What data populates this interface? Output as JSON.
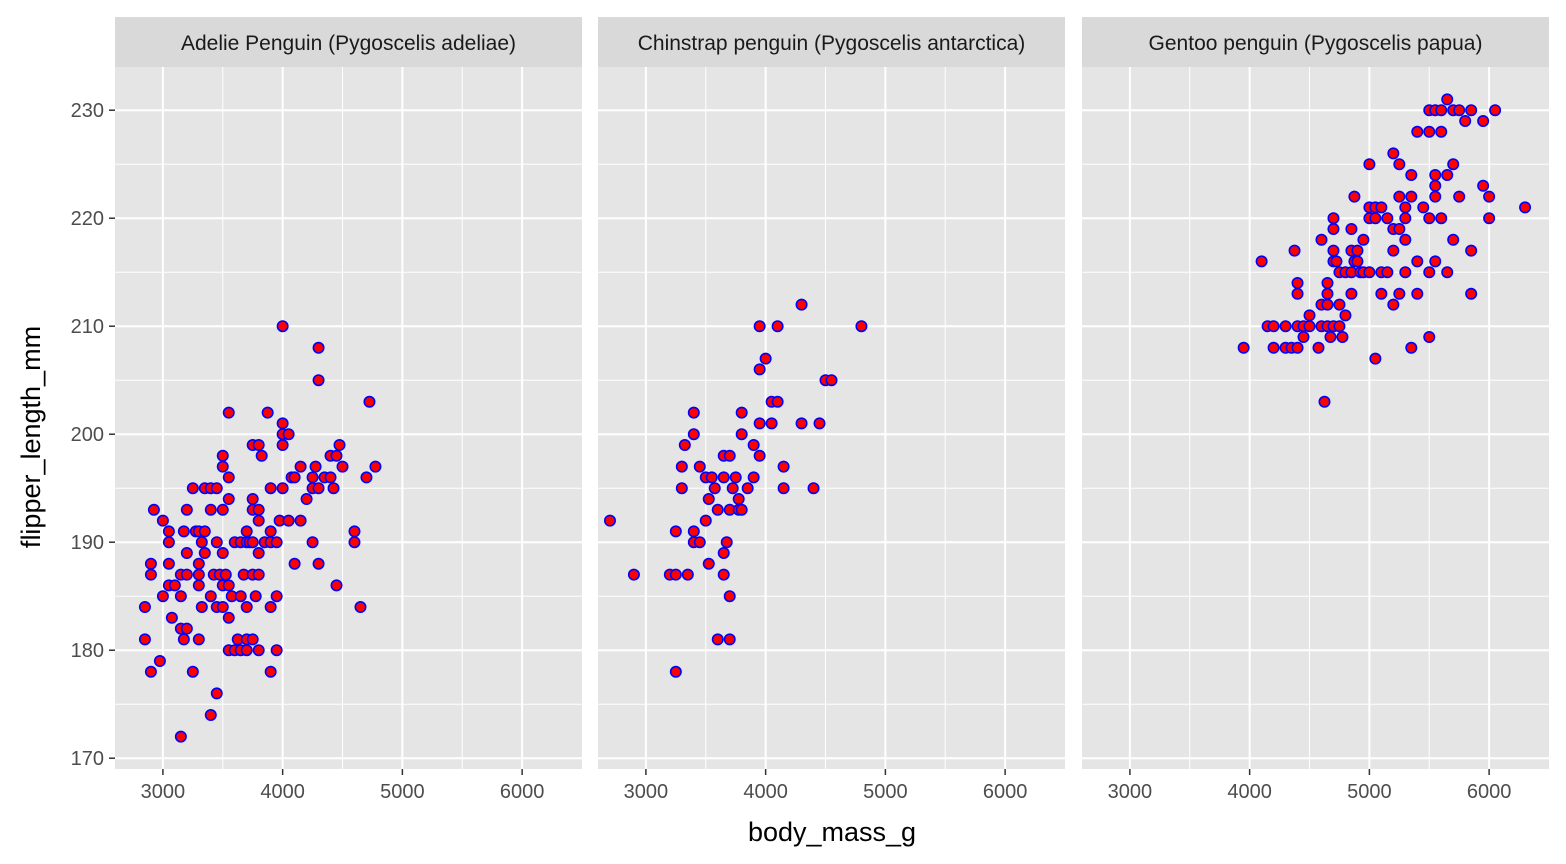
{
  "chart_data": {
    "type": "scatter",
    "xlabel": "body_mass_g",
    "ylabel": "flipper_length_mm",
    "xlim": [
      2600,
      6500
    ],
    "ylim": [
      169,
      234
    ],
    "x_ticks": [
      3000,
      4000,
      5000,
      6000
    ],
    "y_ticks": [
      170,
      180,
      190,
      200,
      210,
      220,
      230
    ],
    "grid": true,
    "point_fill": "#ff0000",
    "point_stroke": "#0000ff",
    "panel_background": "#e5e5e5",
    "strip_background": "#d9d9d9",
    "grid_color": "#ffffff",
    "facets": [
      {
        "label": "Adelie Penguin (Pygoscelis adeliae)",
        "points": [
          [
            2850,
            184
          ],
          [
            2850,
            181
          ],
          [
            2900,
            178
          ],
          [
            2900,
            187
          ],
          [
            2900,
            188
          ],
          [
            2925,
            193
          ],
          [
            2975,
            179
          ],
          [
            3000,
            185
          ],
          [
            3000,
            192
          ],
          [
            3050,
            190
          ],
          [
            3050,
            191
          ],
          [
            3050,
            186
          ],
          [
            3050,
            188
          ],
          [
            3075,
            183
          ],
          [
            3100,
            186
          ],
          [
            3150,
            185
          ],
          [
            3150,
            187
          ],
          [
            3150,
            182
          ],
          [
            3175,
            181
          ],
          [
            3150,
            172
          ],
          [
            3175,
            191
          ],
          [
            3200,
            193
          ],
          [
            3200,
            189
          ],
          [
            3200,
            187
          ],
          [
            3200,
            182
          ],
          [
            3250,
            195
          ],
          [
            3250,
            178
          ],
          [
            3275,
            191
          ],
          [
            3300,
            191
          ],
          [
            3300,
            186
          ],
          [
            3300,
            187
          ],
          [
            3300,
            188
          ],
          [
            3300,
            181
          ],
          [
            3325,
            184
          ],
          [
            3325,
            190
          ],
          [
            3350,
            195
          ],
          [
            3350,
            189
          ],
          [
            3350,
            191
          ],
          [
            3400,
            195
          ],
          [
            3400,
            193
          ],
          [
            3400,
            185
          ],
          [
            3400,
            174
          ],
          [
            3425,
            187
          ],
          [
            3450,
            190
          ],
          [
            3450,
            195
          ],
          [
            3450,
            184
          ],
          [
            3450,
            176
          ],
          [
            3475,
            187
          ],
          [
            3500,
            198
          ],
          [
            3500,
            197
          ],
          [
            3500,
            193
          ],
          [
            3500,
            189
          ],
          [
            3500,
            186
          ],
          [
            3500,
            184
          ],
          [
            3525,
            187
          ],
          [
            3550,
            202
          ],
          [
            3550,
            194
          ],
          [
            3550,
            196
          ],
          [
            3550,
            186
          ],
          [
            3550,
            183
          ],
          [
            3550,
            180
          ],
          [
            3575,
            185
          ],
          [
            3600,
            190
          ],
          [
            3600,
            180
          ],
          [
            3625,
            181
          ],
          [
            3650,
            190
          ],
          [
            3650,
            185
          ],
          [
            3650,
            180
          ],
          [
            3675,
            187
          ],
          [
            3700,
            190
          ],
          [
            3700,
            191
          ],
          [
            3700,
            184
          ],
          [
            3700,
            181
          ],
          [
            3700,
            180
          ],
          [
            3725,
            190
          ],
          [
            3750,
            199
          ],
          [
            3750,
            194
          ],
          [
            3750,
            193
          ],
          [
            3750,
            190
          ],
          [
            3750,
            187
          ],
          [
            3750,
            181
          ],
          [
            3775,
            185
          ],
          [
            3800,
            199
          ],
          [
            3800,
            192
          ],
          [
            3800,
            189
          ],
          [
            3800,
            193
          ],
          [
            3800,
            187
          ],
          [
            3800,
            180
          ],
          [
            3825,
            198
          ],
          [
            3850,
            190
          ],
          [
            3875,
            202
          ],
          [
            3900,
            195
          ],
          [
            3900,
            191
          ],
          [
            3900,
            190
          ],
          [
            3900,
            184
          ],
          [
            3900,
            178
          ],
          [
            3950,
            185
          ],
          [
            3950,
            180
          ],
          [
            3950,
            190
          ],
          [
            3975,
            192
          ],
          [
            4000,
            210
          ],
          [
            4000,
            201
          ],
          [
            4000,
            200
          ],
          [
            4000,
            199
          ],
          [
            4000,
            195
          ],
          [
            4050,
            200
          ],
          [
            4050,
            192
          ],
          [
            4075,
            196
          ],
          [
            4100,
            196
          ],
          [
            4100,
            188
          ],
          [
            4150,
            197
          ],
          [
            4150,
            192
          ],
          [
            4200,
            194
          ],
          [
            4250,
            195
          ],
          [
            4250,
            196
          ],
          [
            4250,
            190
          ],
          [
            4275,
            197
          ],
          [
            4300,
            208
          ],
          [
            4300,
            205
          ],
          [
            4300,
            188
          ],
          [
            4300,
            195
          ],
          [
            4350,
            196
          ],
          [
            4400,
            198
          ],
          [
            4400,
            196
          ],
          [
            4425,
            195
          ],
          [
            4450,
            198
          ],
          [
            4450,
            186
          ],
          [
            4475,
            199
          ],
          [
            4500,
            197
          ],
          [
            4600,
            191
          ],
          [
            4600,
            190
          ],
          [
            4650,
            184
          ],
          [
            4700,
            196
          ],
          [
            4725,
            203
          ],
          [
            4775,
            197
          ]
        ]
      },
      {
        "label": "Chinstrap penguin (Pygoscelis antarctica)",
        "points": [
          [
            2700,
            192
          ],
          [
            2900,
            187
          ],
          [
            3200,
            187
          ],
          [
            3250,
            187
          ],
          [
            3250,
            191
          ],
          [
            3250,
            178
          ],
          [
            3300,
            195
          ],
          [
            3300,
            197
          ],
          [
            3325,
            199
          ],
          [
            3350,
            187
          ],
          [
            3400,
            202
          ],
          [
            3400,
            200
          ],
          [
            3400,
            190
          ],
          [
            3400,
            191
          ],
          [
            3450,
            190
          ],
          [
            3450,
            197
          ],
          [
            3500,
            192
          ],
          [
            3500,
            196
          ],
          [
            3525,
            188
          ],
          [
            3525,
            194
          ],
          [
            3550,
            196
          ],
          [
            3575,
            195
          ],
          [
            3600,
            193
          ],
          [
            3600,
            181
          ],
          [
            3650,
            198
          ],
          [
            3650,
            196
          ],
          [
            3650,
            189
          ],
          [
            3650,
            187
          ],
          [
            3675,
            190
          ],
          [
            3700,
            198
          ],
          [
            3700,
            193
          ],
          [
            3700,
            185
          ],
          [
            3700,
            181
          ],
          [
            3725,
            195
          ],
          [
            3750,
            196
          ],
          [
            3775,
            194
          ],
          [
            3775,
            193
          ],
          [
            3800,
            202
          ],
          [
            3800,
            200
          ],
          [
            3800,
            193
          ],
          [
            3850,
            195
          ],
          [
            3900,
            199
          ],
          [
            3900,
            196
          ],
          [
            3950,
            210
          ],
          [
            3950,
            206
          ],
          [
            3950,
            201
          ],
          [
            3950,
            198
          ],
          [
            4000,
            207
          ],
          [
            4050,
            203
          ],
          [
            4050,
            201
          ],
          [
            4100,
            210
          ],
          [
            4100,
            203
          ],
          [
            4150,
            197
          ],
          [
            4150,
            195
          ],
          [
            4300,
            212
          ],
          [
            4300,
            201
          ],
          [
            4400,
            195
          ],
          [
            4450,
            201
          ],
          [
            4500,
            205
          ],
          [
            4550,
            205
          ],
          [
            4800,
            210
          ]
        ]
      },
      {
        "label": "Gentoo penguin (Pygoscelis papua)",
        "points": [
          [
            3950,
            208
          ],
          [
            4100,
            216
          ],
          [
            4150,
            210
          ],
          [
            4200,
            208
          ],
          [
            4200,
            210
          ],
          [
            4300,
            208
          ],
          [
            4300,
            210
          ],
          [
            4350,
            208
          ],
          [
            4375,
            217
          ],
          [
            4400,
            214
          ],
          [
            4400,
            213
          ],
          [
            4400,
            210
          ],
          [
            4400,
            208
          ],
          [
            4450,
            210
          ],
          [
            4450,
            209
          ],
          [
            4500,
            211
          ],
          [
            4500,
            210
          ],
          [
            4575,
            208
          ],
          [
            4600,
            218
          ],
          [
            4600,
            212
          ],
          [
            4600,
            210
          ],
          [
            4625,
            203
          ],
          [
            4650,
            214
          ],
          [
            4650,
            213
          ],
          [
            4650,
            212
          ],
          [
            4650,
            210
          ],
          [
            4675,
            209
          ],
          [
            4700,
            220
          ],
          [
            4700,
            219
          ],
          [
            4700,
            217
          ],
          [
            4700,
            216
          ],
          [
            4700,
            210
          ],
          [
            4725,
            216
          ],
          [
            4750,
            215
          ],
          [
            4750,
            212
          ],
          [
            4750,
            210
          ],
          [
            4775,
            209
          ],
          [
            4800,
            215
          ],
          [
            4800,
            211
          ],
          [
            4850,
            219
          ],
          [
            4850,
            217
          ],
          [
            4850,
            215
          ],
          [
            4850,
            213
          ],
          [
            4875,
            222
          ],
          [
            4875,
            216
          ],
          [
            4900,
            217
          ],
          [
            4900,
            216
          ],
          [
            4925,
            215
          ],
          [
            4950,
            218
          ],
          [
            4950,
            215
          ],
          [
            5000,
            225
          ],
          [
            5000,
            221
          ],
          [
            5000,
            220
          ],
          [
            5000,
            215
          ],
          [
            5050,
            221
          ],
          [
            5050,
            220
          ],
          [
            5050,
            207
          ],
          [
            5100,
            221
          ],
          [
            5100,
            215
          ],
          [
            5100,
            213
          ],
          [
            5150,
            220
          ],
          [
            5150,
            215
          ],
          [
            5200,
            226
          ],
          [
            5200,
            219
          ],
          [
            5200,
            217
          ],
          [
            5200,
            212
          ],
          [
            5250,
            225
          ],
          [
            5250,
            222
          ],
          [
            5250,
            219
          ],
          [
            5250,
            213
          ],
          [
            5300,
            221
          ],
          [
            5300,
            220
          ],
          [
            5300,
            215
          ],
          [
            5300,
            218
          ],
          [
            5350,
            224
          ],
          [
            5350,
            222
          ],
          [
            5350,
            208
          ],
          [
            5400,
            228
          ],
          [
            5400,
            216
          ],
          [
            5400,
            213
          ],
          [
            5450,
            221
          ],
          [
            5500,
            230
          ],
          [
            5500,
            228
          ],
          [
            5500,
            220
          ],
          [
            5500,
            215
          ],
          [
            5500,
            209
          ],
          [
            5550,
            230
          ],
          [
            5550,
            224
          ],
          [
            5550,
            223
          ],
          [
            5550,
            222
          ],
          [
            5550,
            216
          ],
          [
            5600,
            228
          ],
          [
            5600,
            220
          ],
          [
            5600,
            230
          ],
          [
            5650,
            231
          ],
          [
            5650,
            224
          ],
          [
            5650,
            215
          ],
          [
            5700,
            230
          ],
          [
            5700,
            225
          ],
          [
            5700,
            218
          ],
          [
            5750,
            222
          ],
          [
            5750,
            230
          ],
          [
            5800,
            229
          ],
          [
            5850,
            230
          ],
          [
            5850,
            217
          ],
          [
            5850,
            213
          ],
          [
            5950,
            229
          ],
          [
            5950,
            223
          ],
          [
            6000,
            222
          ],
          [
            6000,
            220
          ],
          [
            6050,
            230
          ],
          [
            6300,
            221
          ]
        ]
      }
    ]
  }
}
